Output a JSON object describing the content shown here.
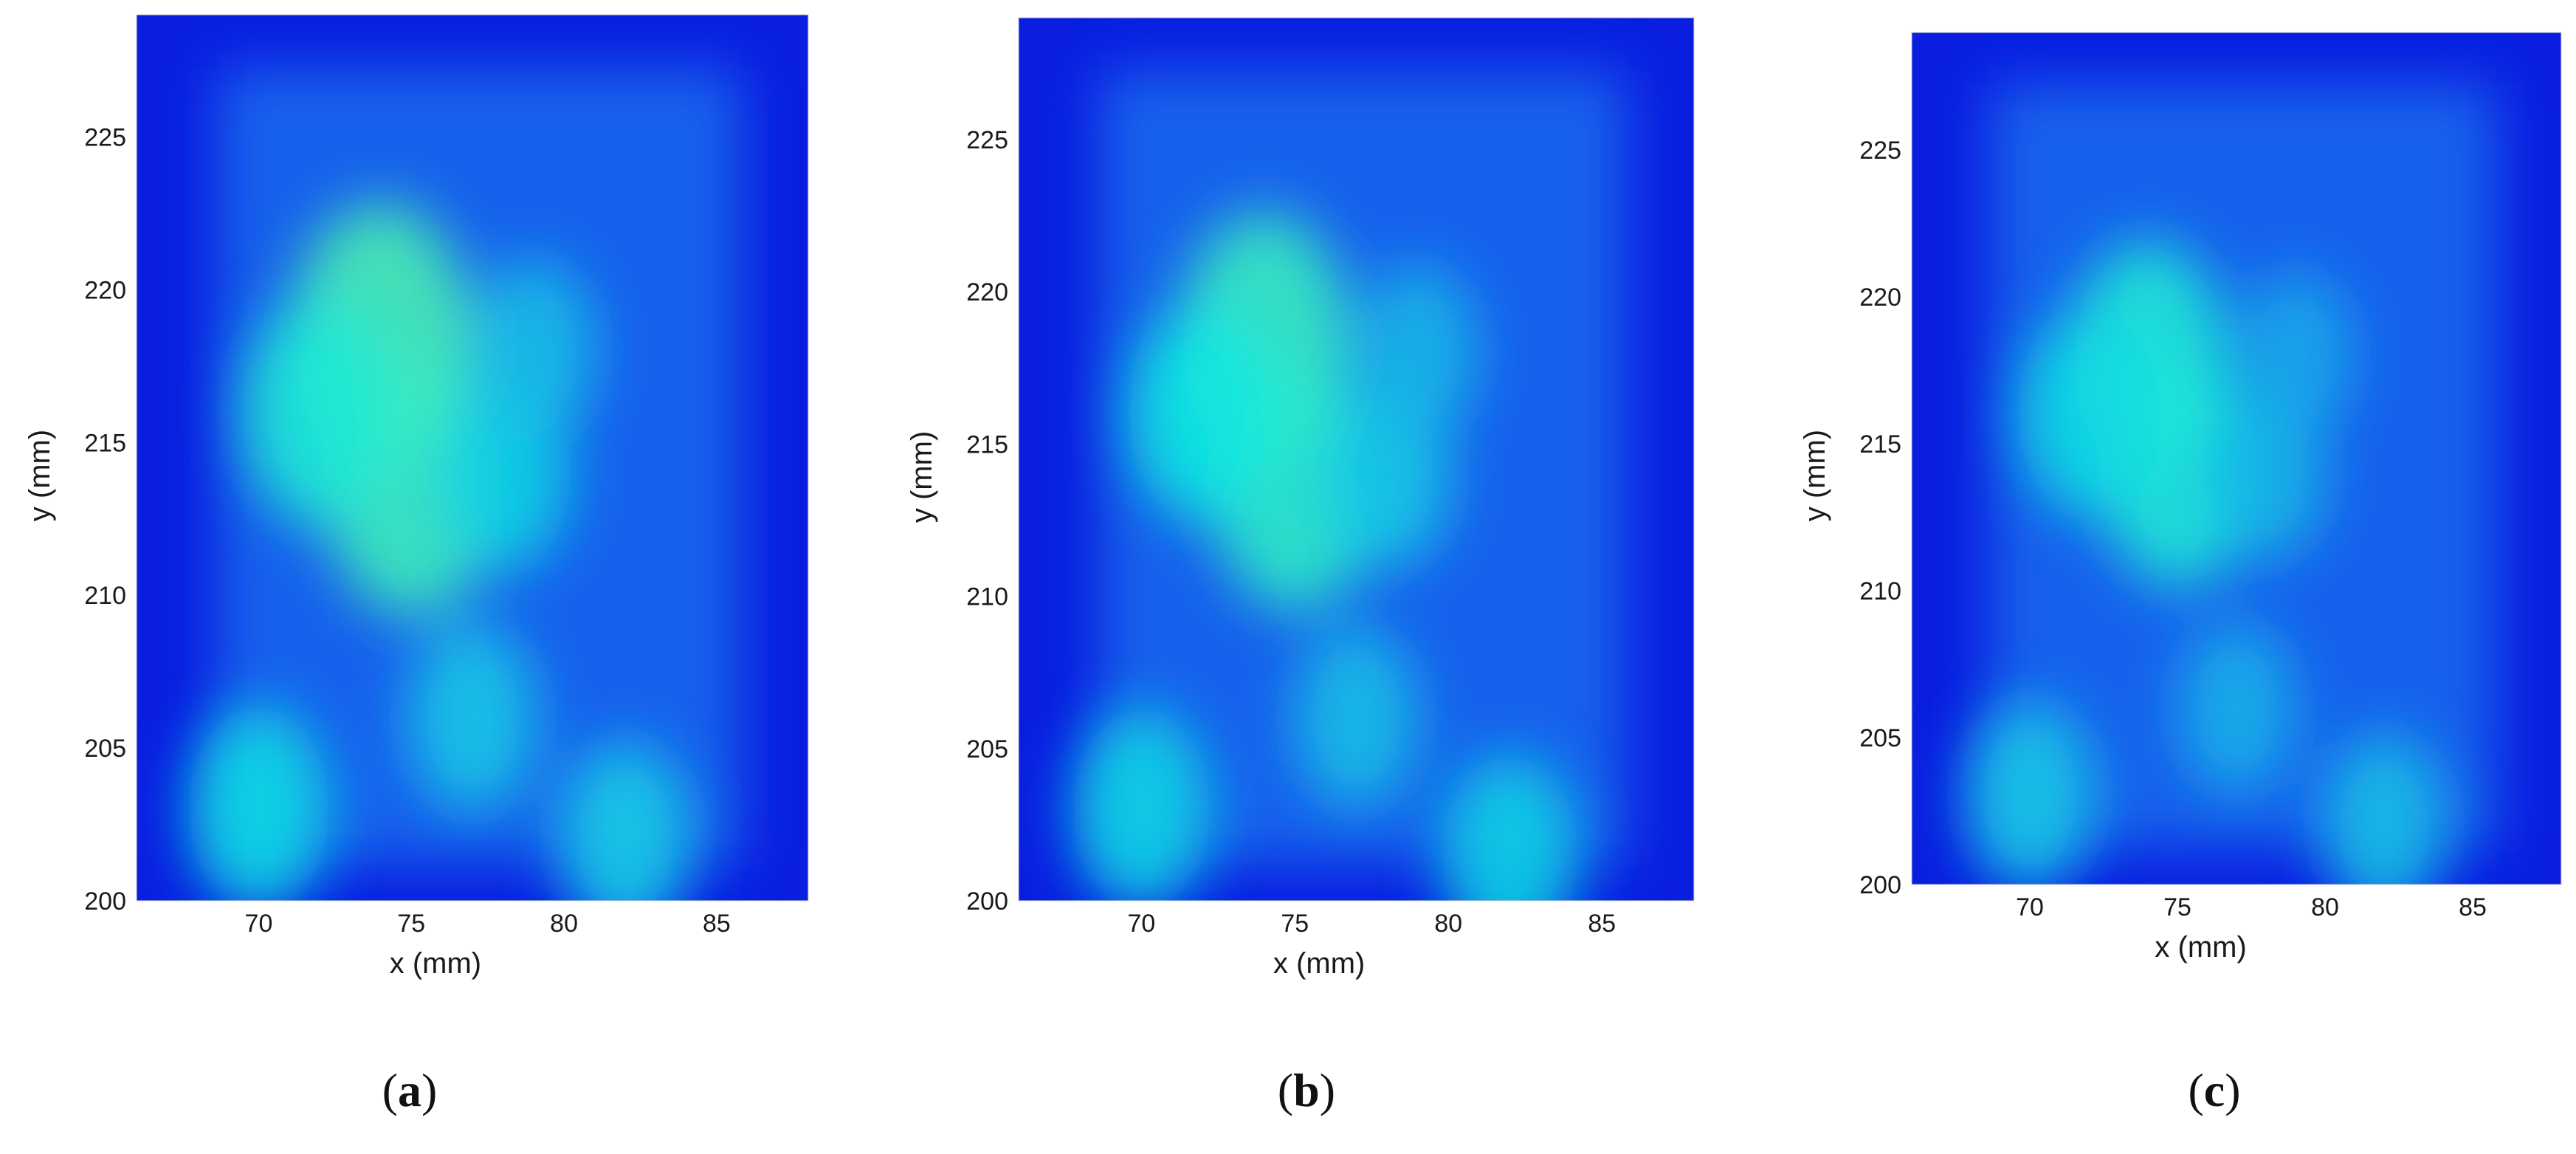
{
  "colors": {
    "low": "#0a1ee0",
    "mid": "#1e78f0",
    "high": "#10e8e0",
    "peak": "#5ef0a0"
  },
  "chart_data": [
    {
      "type": "heatmap",
      "caption": {
        "open": "(",
        "letter": "a",
        "close": ")"
      },
      "xlabel": "x (mm)",
      "ylabel": "y (mm)",
      "xlim": [
        66,
        88
      ],
      "ylim": [
        200,
        229
      ],
      "xticks": [
        70,
        75,
        80,
        85
      ],
      "yticks": [
        200,
        205,
        210,
        215,
        220,
        225
      ],
      "colormap": "jet",
      "hotspots": [
        {
          "x": 74,
          "y": 218.5,
          "intensity": 0.62
        },
        {
          "x": 75,
          "y": 213.5,
          "intensity": 0.58
        },
        {
          "x": 72,
          "y": 216,
          "intensity": 0.45
        },
        {
          "x": 78,
          "y": 214,
          "intensity": 0.32
        },
        {
          "x": 70,
          "y": 203,
          "intensity": 0.35
        },
        {
          "x": 77,
          "y": 206,
          "intensity": 0.28
        },
        {
          "x": 82,
          "y": 202,
          "intensity": 0.3
        },
        {
          "x": 79,
          "y": 218,
          "intensity": 0.25
        }
      ]
    },
    {
      "type": "heatmap",
      "caption": {
        "open": "(",
        "letter": "b",
        "close": ")"
      },
      "xlabel": "x (mm)",
      "ylabel": "y (mm)",
      "xlim": [
        66,
        88
      ],
      "ylim": [
        200,
        229
      ],
      "xticks": [
        70,
        75,
        80,
        85
      ],
      "yticks": [
        200,
        205,
        210,
        215,
        220,
        225
      ],
      "colormap": "jet",
      "hotspots": [
        {
          "x": 74,
          "y": 218.5,
          "intensity": 0.55
        },
        {
          "x": 75,
          "y": 213.5,
          "intensity": 0.52
        },
        {
          "x": 72,
          "y": 216,
          "intensity": 0.4
        },
        {
          "x": 78,
          "y": 214,
          "intensity": 0.28
        },
        {
          "x": 70,
          "y": 203,
          "intensity": 0.33
        },
        {
          "x": 77,
          "y": 206,
          "intensity": 0.25
        },
        {
          "x": 82,
          "y": 201.5,
          "intensity": 0.32
        },
        {
          "x": 79,
          "y": 218,
          "intensity": 0.22
        }
      ]
    },
    {
      "type": "heatmap",
      "caption": {
        "open": "(",
        "letter": "c",
        "close": ")"
      },
      "xlabel": "x (mm)",
      "ylabel": "y (mm)",
      "xlim": [
        66,
        88
      ],
      "ylim": [
        200,
        229
      ],
      "xticks": [
        70,
        75,
        80,
        85
      ],
      "yticks": [
        200,
        205,
        210,
        215,
        220,
        225
      ],
      "colormap": "jet",
      "hotspots": [
        {
          "x": 74,
          "y": 218,
          "intensity": 0.45
        },
        {
          "x": 75,
          "y": 214,
          "intensity": 0.45
        },
        {
          "x": 72,
          "y": 216,
          "intensity": 0.35
        },
        {
          "x": 78,
          "y": 214,
          "intensity": 0.22
        },
        {
          "x": 70,
          "y": 203,
          "intensity": 0.28
        },
        {
          "x": 77,
          "y": 206,
          "intensity": 0.2
        },
        {
          "x": 82,
          "y": 202,
          "intensity": 0.25
        },
        {
          "x": 79,
          "y": 218,
          "intensity": 0.18
        }
      ]
    }
  ]
}
